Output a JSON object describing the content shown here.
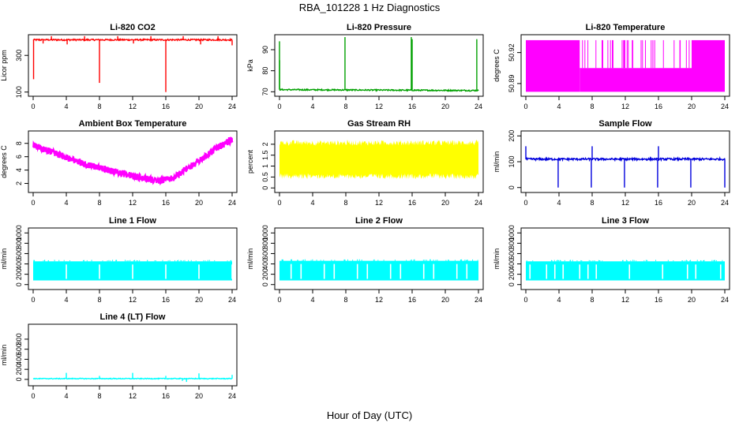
{
  "figure": {
    "title": "RBA_101228  1 Hz Diagnostics",
    "xlabel": "Hour of Day (UTC)"
  },
  "chart_data": [
    {
      "type": "line",
      "title": "Li-820 CO2",
      "ylabel": "Licor ppm",
      "color": "#ff0000",
      "xlim": [
        0,
        24
      ],
      "xticks": [
        0,
        4,
        8,
        12,
        16,
        20,
        24
      ],
      "ylim": [
        90,
        400
      ],
      "yticks": [
        100,
        300
      ],
      "series": [
        {
          "baseline": 385,
          "noise": 4,
          "spikes": [
            [
              0.05,
              170
            ],
            [
              0.1,
              390
            ],
            [
              1.2,
              365
            ],
            [
              2.2,
              405
            ],
            [
              4.1,
              360
            ],
            [
              6.2,
              405
            ],
            [
              8.0,
              150
            ],
            [
              10.2,
              405
            ],
            [
              12.1,
              365
            ],
            [
              14.2,
              405
            ],
            [
              16.0,
              100
            ],
            [
              18.1,
              405
            ],
            [
              20.2,
              360
            ],
            [
              22.3,
              405
            ],
            [
              24.0,
              355
            ]
          ]
        }
      ]
    },
    {
      "type": "line",
      "title": "Li-820 Pressure",
      "ylabel": "kPa",
      "color": "#00a000",
      "xlim": [
        0,
        24
      ],
      "xticks": [
        0,
        4,
        8,
        12,
        16,
        20,
        24
      ],
      "ylim": [
        69,
        96
      ],
      "yticks": [
        70,
        80,
        90
      ],
      "series": [
        {
          "baseline": 71.0,
          "drift": -0.4,
          "noise": 0.3,
          "spikes": [
            [
              0.0,
              94
            ],
            [
              0.01,
              85
            ],
            [
              7.9,
              96
            ],
            [
              15.9,
              96
            ],
            [
              16.0,
              95
            ],
            [
              23.8,
              95
            ]
          ]
        }
      ]
    },
    {
      "type": "area",
      "title": "Li-820 Temperature",
      "ylabel": "degrees C",
      "color": "#ff00ff",
      "xlim": [
        0,
        24
      ],
      "xticks": [
        0,
        4,
        8,
        12,
        16,
        20,
        24
      ],
      "ylim": [
        50.88,
        50.935
      ],
      "yticks": [
        50.89,
        50.92
      ],
      "series": [
        {
          "bands": [
            [
              0,
              6.5,
              50.882,
              50.932
            ],
            [
              6.5,
              12,
              50.882,
              50.905
            ],
            [
              12,
              20,
              50.882,
              50.905
            ],
            [
              20,
              24,
              50.882,
              50.932
            ]
          ]
        }
      ]
    },
    {
      "type": "line",
      "title": "Ambient Box Temperature",
      "ylabel": "degrees C",
      "color": "#ff00ff",
      "xlim": [
        0,
        24
      ],
      "xticks": [
        0,
        4,
        8,
        12,
        16,
        20,
        24
      ],
      "ylim": [
        1,
        9.5
      ],
      "yticks": [
        2,
        4,
        6,
        8
      ],
      "series": [
        {
          "x": [
            0,
            2,
            4,
            6,
            8,
            10,
            12,
            14,
            15.5,
            17,
            18,
            20,
            22,
            24
          ],
          "y": [
            7.7,
            6.8,
            5.9,
            5.0,
            4.3,
            3.7,
            3.1,
            2.6,
            2.4,
            2.8,
            3.8,
            5.3,
            7.2,
            8.6
          ],
          "noise": 0.5
        }
      ]
    },
    {
      "type": "area",
      "title": "Gas Stream RH",
      "ylabel": "percent",
      "color": "#ffff00",
      "xlim": [
        0,
        24
      ],
      "xticks": [
        0,
        4,
        8,
        12,
        16,
        20,
        24
      ],
      "ylim": [
        -0.1,
        2.5
      ],
      "yticks": [
        0.0,
        0.5,
        1.0,
        1.5,
        2.0
      ],
      "series": [
        {
          "mid": 1.3,
          "halfwidth": 0.85
        }
      ]
    },
    {
      "type": "line",
      "title": "Sample Flow",
      "ylabel": "ml/min",
      "color": "#0000dd",
      "xlim": [
        0,
        24
      ],
      "xticks": [
        0,
        4,
        8,
        12,
        16,
        20,
        24
      ],
      "ylim": [
        -10,
        210
      ],
      "yticks": [
        0,
        100,
        200
      ],
      "series": [
        {
          "baseline": 110,
          "noise": 4,
          "spikes": [
            [
              0.0,
              160
            ],
            [
              3.9,
              0
            ],
            [
              7.9,
              0
            ],
            [
              8.0,
              160
            ],
            [
              11.9,
              0
            ],
            [
              12.0,
              105
            ],
            [
              15.9,
              0
            ],
            [
              16.0,
              160
            ],
            [
              19.9,
              0
            ],
            [
              24.0,
              0
            ]
          ]
        }
      ]
    },
    {
      "type": "area",
      "title": "Line 1 Flow",
      "ylabel": "ml/min",
      "color": "#00ffff",
      "xlim": [
        0,
        24
      ],
      "xticks": [
        0,
        4,
        8,
        12,
        16,
        20,
        24
      ],
      "ylim": [
        -50,
        1050
      ],
      "yticks": [
        0,
        200,
        400,
        600,
        800,
        1000
      ],
      "series": [
        {
          "low": 80,
          "high": 450,
          "gaps": [
            4,
            8,
            12,
            16,
            20,
            24
          ]
        }
      ]
    },
    {
      "type": "area",
      "title": "Line 2 Flow",
      "ylabel": "ml/min",
      "color": "#00ffff",
      "xlim": [
        0,
        24
      ],
      "xticks": [
        0,
        4,
        8,
        12,
        16,
        20,
        24
      ],
      "ylim": [
        -50,
        1050
      ],
      "yticks": [
        0,
        200,
        400,
        600,
        800,
        1000
      ],
      "series": [
        {
          "low": 80,
          "high": 460,
          "gaps": [
            1.4,
            2.6,
            5.4,
            6.6,
            9.4,
            10.6,
            13.4,
            14.6,
            17.4,
            18.6,
            21.4,
            22.6
          ]
        }
      ]
    },
    {
      "type": "area",
      "title": "Line 3 Flow",
      "ylabel": "ml/min",
      "color": "#00ffff",
      "xlim": [
        0,
        24
      ],
      "xticks": [
        0,
        4,
        8,
        12,
        16,
        20,
        24
      ],
      "ylim": [
        -50,
        1050
      ],
      "yticks": [
        0,
        200,
        400,
        600,
        800,
        1000
      ],
      "series": [
        {
          "low": 80,
          "high": 450,
          "gaps": [
            0.5,
            2.5,
            3.5,
            4.5,
            6.5,
            7.5,
            8.5,
            12.5,
            16.5,
            19.5,
            20.5,
            23.5
          ]
        }
      ]
    },
    {
      "type": "line",
      "title": "Line 4 (LT) Flow",
      "ylabel": "ml/min",
      "color": "#00ffff",
      "xlim": [
        0,
        24
      ],
      "xticks": [
        0,
        4,
        8,
        12,
        16,
        20,
        24
      ],
      "ylim": [
        -80,
        1050
      ],
      "yticks": [
        0,
        200,
        400,
        600,
        800
      ],
      "series": [
        {
          "baseline": 15,
          "noise": 8,
          "spikes": [
            [
              4.0,
              130
            ],
            [
              8.0,
              70
            ],
            [
              12.0,
              130
            ],
            [
              16.0,
              70
            ],
            [
              18.0,
              -30
            ],
            [
              18.5,
              -50
            ],
            [
              20.0,
              120
            ],
            [
              24.0,
              90
            ]
          ]
        }
      ]
    }
  ]
}
